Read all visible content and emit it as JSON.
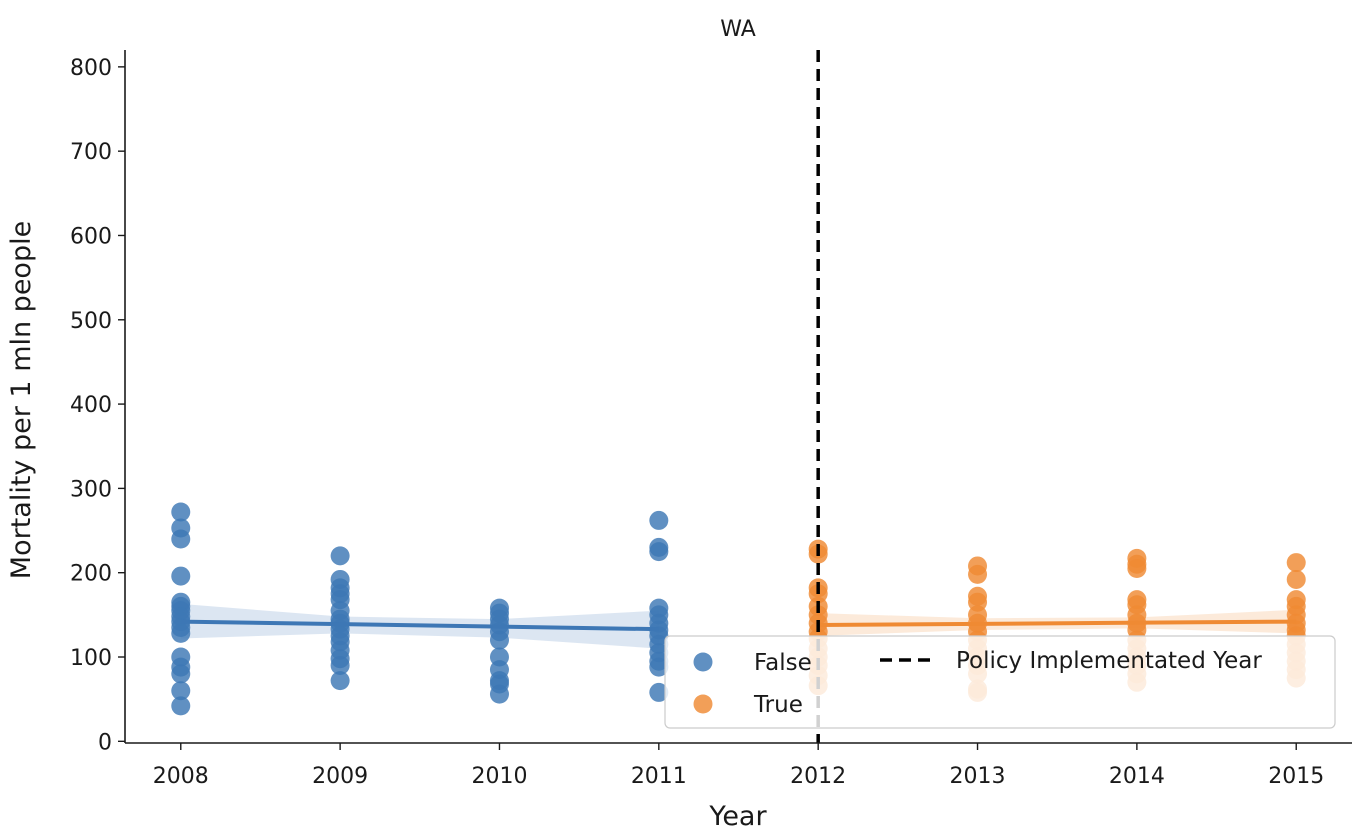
{
  "chart_data": {
    "type": "scatter",
    "title": "WA",
    "xlabel": "Year",
    "ylabel": "Mortality per 1 mln people",
    "xlim": [
      2007.65,
      2015.35
    ],
    "ylim": [
      -2,
      820
    ],
    "xticks": [
      2008,
      2009,
      2010,
      2011,
      2012,
      2013,
      2014,
      2015
    ],
    "yticks": [
      0,
      100,
      200,
      300,
      400,
      500,
      600,
      700,
      800
    ],
    "grid": false,
    "legend_position": "lower-right",
    "series": [
      {
        "name": "False",
        "color": "#3d77b5",
        "points": [
          [
            2008,
            272
          ],
          [
            2008,
            253
          ],
          [
            2008,
            240
          ],
          [
            2008,
            196
          ],
          [
            2008,
            165
          ],
          [
            2008,
            160
          ],
          [
            2008,
            155
          ],
          [
            2008,
            148
          ],
          [
            2008,
            142
          ],
          [
            2008,
            135
          ],
          [
            2008,
            128
          ],
          [
            2008,
            100
          ],
          [
            2008,
            88
          ],
          [
            2008,
            80
          ],
          [
            2008,
            60
          ],
          [
            2008,
            42
          ],
          [
            2009,
            220
          ],
          [
            2009,
            192
          ],
          [
            2009,
            182
          ],
          [
            2009,
            175
          ],
          [
            2009,
            168
          ],
          [
            2009,
            155
          ],
          [
            2009,
            145
          ],
          [
            2009,
            140
          ],
          [
            2009,
            133
          ],
          [
            2009,
            125
          ],
          [
            2009,
            118
          ],
          [
            2009,
            108
          ],
          [
            2009,
            98
          ],
          [
            2009,
            90
          ],
          [
            2009,
            72
          ],
          [
            2010,
            158
          ],
          [
            2010,
            152
          ],
          [
            2010,
            145
          ],
          [
            2010,
            138
          ],
          [
            2010,
            130
          ],
          [
            2010,
            120
          ],
          [
            2010,
            100
          ],
          [
            2010,
            85
          ],
          [
            2010,
            72
          ],
          [
            2010,
            68
          ],
          [
            2010,
            56
          ],
          [
            2011,
            262
          ],
          [
            2011,
            230
          ],
          [
            2011,
            225
          ],
          [
            2011,
            158
          ],
          [
            2011,
            150
          ],
          [
            2011,
            140
          ],
          [
            2011,
            132
          ],
          [
            2011,
            125
          ],
          [
            2011,
            115
          ],
          [
            2011,
            105
          ],
          [
            2011,
            95
          ],
          [
            2011,
            88
          ],
          [
            2011,
            58
          ]
        ],
        "trend": [
          [
            2008,
            142
          ],
          [
            2011,
            133
          ]
        ],
        "trend_ci": [
          [
            2008,
            163,
            122
          ],
          [
            2009,
            148,
            128
          ],
          [
            2010,
            145,
            123
          ],
          [
            2011,
            155,
            110
          ]
        ]
      },
      {
        "name": "True",
        "color": "#ef8a33",
        "points": [
          [
            2012,
            228
          ],
          [
            2012,
            222
          ],
          [
            2012,
            182
          ],
          [
            2012,
            175
          ],
          [
            2012,
            160
          ],
          [
            2012,
            150
          ],
          [
            2012,
            140
          ],
          [
            2012,
            130
          ],
          [
            2012,
            122
          ],
          [
            2012,
            110
          ],
          [
            2012,
            100
          ],
          [
            2012,
            90
          ],
          [
            2012,
            78
          ],
          [
            2012,
            66
          ],
          [
            2013,
            208
          ],
          [
            2013,
            198
          ],
          [
            2013,
            172
          ],
          [
            2013,
            165
          ],
          [
            2013,
            150
          ],
          [
            2013,
            140
          ],
          [
            2013,
            130
          ],
          [
            2013,
            120
          ],
          [
            2013,
            110
          ],
          [
            2013,
            100
          ],
          [
            2013,
            90
          ],
          [
            2013,
            80
          ],
          [
            2013,
            62
          ],
          [
            2013,
            58
          ],
          [
            2014,
            217
          ],
          [
            2014,
            210
          ],
          [
            2014,
            205
          ],
          [
            2014,
            168
          ],
          [
            2014,
            162
          ],
          [
            2014,
            150
          ],
          [
            2014,
            140
          ],
          [
            2014,
            132
          ],
          [
            2014,
            120
          ],
          [
            2014,
            110
          ],
          [
            2014,
            100
          ],
          [
            2014,
            90
          ],
          [
            2014,
            80
          ],
          [
            2014,
            70
          ],
          [
            2015,
            212
          ],
          [
            2015,
            192
          ],
          [
            2015,
            168
          ],
          [
            2015,
            160
          ],
          [
            2015,
            150
          ],
          [
            2015,
            140
          ],
          [
            2015,
            132
          ],
          [
            2015,
            125
          ],
          [
            2015,
            115
          ],
          [
            2015,
            105
          ],
          [
            2015,
            95
          ],
          [
            2015,
            85
          ],
          [
            2015,
            75
          ]
        ],
        "trend": [
          [
            2012,
            138
          ],
          [
            2015,
            142
          ]
        ],
        "trend_ci": [
          [
            2012,
            152,
            125
          ],
          [
            2013,
            146,
            132
          ],
          [
            2014,
            147,
            134
          ],
          [
            2015,
            156,
            128
          ]
        ]
      }
    ],
    "vline": {
      "x": 2012,
      "label": "Policy Implementated Year",
      "color": "#000000"
    },
    "legend": {
      "entries": [
        "False",
        "True",
        "Policy Implementated Year"
      ]
    }
  }
}
